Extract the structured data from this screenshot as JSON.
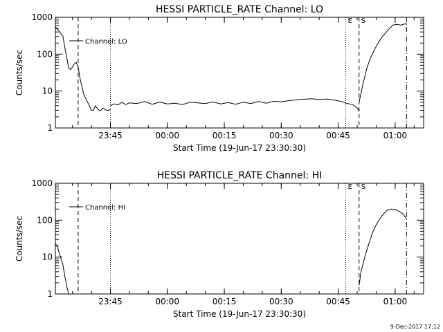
{
  "footer_timestamp": "9-Dec-2017 17:12",
  "colors": {
    "background": "#ffffff",
    "foreground": "#000000"
  },
  "chart_data": [
    {
      "type": "line",
      "title": "HESSI PARTICLE_RATE Channel: LO",
      "xlabel": "Start Time (19-Jun-17 23:30:30)",
      "ylabel": "Counts/sec",
      "yscale": "log",
      "ylim": [
        1,
        1000
      ],
      "ytick_labels": [
        "1",
        "10",
        "100",
        "1000"
      ],
      "xlim": [
        "23:30:30",
        "01:07:30"
      ],
      "xtick_labels": [
        "23:45",
        "00:00",
        "00:15",
        "00:30",
        "00:45",
        "01:00"
      ],
      "legend": "Channel: LO",
      "grid": false,
      "markers": [
        {
          "label": "",
          "time": "23:36:30",
          "style": "dashed"
        },
        {
          "label": "",
          "time": "23:45:00",
          "style": "dotted"
        },
        {
          "label": "E",
          "time": "00:47:00",
          "style": "dotted"
        },
        {
          "label": "S",
          "time": "00:50:30",
          "style": "dashed"
        },
        {
          "label": "",
          "time": "01:03:00",
          "style": "dashdot"
        }
      ],
      "series": [
        {
          "segments": [
            {
              "x": [
                "23:30:30",
                "23:31:30",
                "23:32:30",
                "23:33:00",
                "23:33:30",
                "23:34:00",
                "23:34:30",
                "23:35:00",
                "23:35:30",
                "23:36:00",
                "23:36:30",
                "23:37:00",
                "23:38:00",
                "23:39:00",
                "23:40:00",
                "23:40:30",
                "23:41:00",
                "23:42:00",
                "23:42:30",
                "23:43:00",
                "23:44:00",
                "23:44:30",
                "23:45:00"
              ],
              "y": [
                550,
                420,
                300,
                150,
                80,
                42,
                38,
                45,
                55,
                60,
                45,
                22,
                8,
                5,
                3,
                3,
                4,
                3,
                3,
                3.5,
                3,
                3,
                3.2
              ]
            },
            {
              "x": [
                "23:45:00",
                "23:46:00",
                "23:47:00",
                "23:48:00",
                "23:49:00",
                "23:50:00",
                "23:52:00",
                "23:54:00",
                "23:56:00",
                "23:58:00",
                "00:00:00",
                "00:02:00",
                "00:04:00",
                "00:06:00",
                "00:08:00",
                "00:10:00",
                "00:12:00",
                "00:14:00",
                "00:16:00",
                "00:18:00",
                "00:20:00",
                "00:22:00",
                "00:24:00",
                "00:26:00",
                "00:28:00",
                "00:30:00",
                "00:32:00",
                "00:34:00",
                "00:36:00",
                "00:38:00",
                "00:40:00",
                "00:42:00",
                "00:44:00",
                "00:46:00",
                "00:47:00",
                "00:48:00",
                "00:49:00",
                "00:50:00",
                "00:50:30"
              ],
              "y": [
                4,
                4.5,
                4.2,
                5,
                4.3,
                4.8,
                4.6,
                5.2,
                4.4,
                5,
                4.5,
                4.7,
                4.3,
                5,
                4.8,
                4.6,
                5.1,
                4.5,
                4.9,
                4.4,
                5,
                4.6,
                5.2,
                4.7,
                5.3,
                5.1,
                5.5,
                5.8,
                6,
                6.2,
                5.9,
                6.1,
                5.7,
                5.2,
                4.7,
                4.5,
                4.2,
                3.5,
                2.8
              ]
            },
            {
              "x": [
                "00:50:30",
                "00:51:30",
                "00:52:30",
                "00:53:30",
                "00:54:30",
                "00:55:30",
                "00:56:30",
                "00:57:30",
                "00:58:30",
                "00:59:30",
                "01:00:30",
                "01:01:30",
                "01:02:30",
                "01:03:00"
              ],
              "y": [
                5,
                15,
                40,
                80,
                130,
                200,
                290,
                380,
                500,
                620,
                640,
                610,
                660,
                700
              ]
            }
          ]
        }
      ]
    },
    {
      "type": "line",
      "title": "HESSI PARTICLE_RATE Channel: HI",
      "xlabel": "Start Time (19-Jun-17 23:30:30)",
      "ylabel": "Counts/sec",
      "yscale": "log",
      "ylim": [
        1,
        1000
      ],
      "ytick_labels": [
        "1",
        "10",
        "100",
        "1000"
      ],
      "xlim": [
        "23:30:30",
        "01:07:30"
      ],
      "xtick_labels": [
        "23:45",
        "00:00",
        "00:15",
        "00:30",
        "00:45",
        "01:00"
      ],
      "legend": "Channel: HI",
      "grid": false,
      "markers": [
        {
          "label": "",
          "time": "23:36:30",
          "style": "dashed"
        },
        {
          "label": "",
          "time": "23:45:00",
          "style": "dotted"
        },
        {
          "label": "E",
          "time": "00:47:00",
          "style": "dotted"
        },
        {
          "label": "S",
          "time": "00:50:30",
          "style": "dashed"
        },
        {
          "label": "",
          "time": "01:03:00",
          "style": "dashdot"
        }
      ],
      "series": [
        {
          "segments": [
            {
              "x": [
                "23:30:30",
                "23:31:00",
                "23:31:30",
                "23:32:00",
                "23:32:30",
                "23:33:00",
                "23:33:30",
                "23:34:00"
              ],
              "y": [
                23,
                20,
                13,
                9,
                6,
                3,
                1.6,
                1
              ]
            },
            {
              "x": [
                "00:50:30",
                "00:51:00",
                "00:52:00",
                "00:53:00",
                "00:54:00",
                "00:55:00",
                "00:56:00",
                "00:57:00",
                "00:58:00",
                "00:59:00",
                "01:00:00",
                "01:01:00",
                "01:02:00",
                "01:03:00"
              ],
              "y": [
                1.7,
                4,
                10,
                22,
                45,
                75,
                110,
                150,
                190,
                200,
                195,
                175,
                150,
                110
              ]
            }
          ]
        }
      ]
    }
  ]
}
